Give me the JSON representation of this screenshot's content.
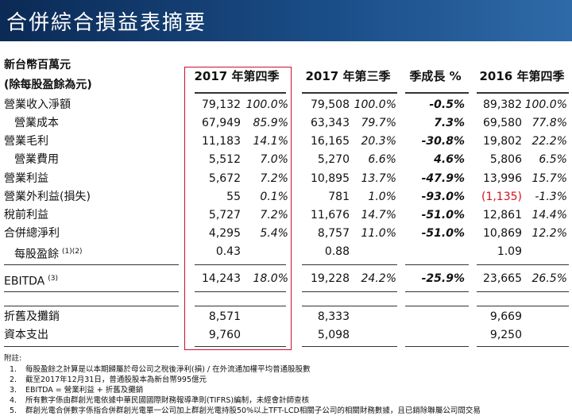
{
  "header": {
    "title": "合併綜合損益表摘要"
  },
  "table": {
    "unit_label": [
      "新台幣百萬元",
      "(除每股盈餘為元)"
    ],
    "columns": [
      "2017 年第四季",
      "2017 年第三季",
      "季成長 %",
      "2016 年第四季"
    ],
    "rows": [
      {
        "label": "營業收入淨額",
        "cells": [
          "79,132",
          "100.0%",
          "79,508",
          "100.0%",
          "-0.5%",
          "89,382",
          "100.0%"
        ]
      },
      {
        "label": "營業成本",
        "indent": true,
        "cells": [
          "67,949",
          "85.9%",
          "63,343",
          "79.7%",
          "7.3%",
          "69,580",
          "77.8%"
        ]
      },
      {
        "label": "營業毛利",
        "cells": [
          "11,183",
          "14.1%",
          "16,165",
          "20.3%",
          "-30.8%",
          "19,802",
          "22.2%"
        ]
      },
      {
        "label": "營業費用",
        "indent": true,
        "cells": [
          "5,512",
          "7.0%",
          "5,270",
          "6.6%",
          "4.6%",
          "5,806",
          "6.5%"
        ]
      },
      {
        "label": "營業利益",
        "cells": [
          "5,672",
          "7.2%",
          "10,895",
          "13.7%",
          "-47.9%",
          "13,996",
          "15.7%"
        ]
      },
      {
        "label": "營業外利益(損失)",
        "cells": [
          "55",
          "0.1%",
          "781",
          "1.0%",
          "-93.0%",
          "(1,135)",
          "-1.3%"
        ]
      },
      {
        "label": "稅前利益",
        "cells": [
          "5,727",
          "7.2%",
          "11,676",
          "14.7%",
          "-51.0%",
          "12,861",
          "14.4%"
        ]
      },
      {
        "label": "合併總淨利",
        "cells": [
          "4,295",
          "5.4%",
          "8,757",
          "11.0%",
          "-51.0%",
          "10,869",
          "12.2%"
        ]
      },
      {
        "label": "每股盈餘",
        "note": "(1)(2)",
        "indent": true,
        "cells": [
          "0.43",
          null,
          "0.88",
          null,
          null,
          "1.09",
          null
        ]
      },
      {
        "label": "EBITDA",
        "note": "(3)",
        "cells": [
          "14,243",
          "18.0%",
          "19,228",
          "24.2%",
          "-25.9%",
          "23,665",
          "26.5%"
        ]
      },
      {
        "label": "折舊及攤銷",
        "cells": [
          "8,571",
          null,
          "8,333",
          null,
          null,
          "9,669",
          null
        ]
      },
      {
        "label": "資本支出",
        "cells": [
          "9,760",
          null,
          "5,098",
          null,
          null,
          "9,250",
          null
        ]
      }
    ]
  },
  "footnotes": {
    "heading": "附註:",
    "items": [
      {
        "number": "1.",
        "text": "每股盈餘之計算是以本期歸屬於母公司之稅後淨利(損) / 在外流通加權平均普通股股數"
      },
      {
        "number": "2.",
        "text": "截至2017年12月31日，普通股股本為新台幣995億元"
      },
      {
        "number": "3.",
        "text": "EBITDA = 營業利益 + 折舊及攤銷"
      },
      {
        "number": "4.",
        "text": "所有數字係由群創光電依據中華民國國際財務報導準則(TIFRS)編制，未經會計師查核"
      },
      {
        "number": "5.",
        "text": "群創光電合併數字係指合併群創光電單一公司加上群創光電持股50%以上TFT-LCD相關子公司的相關財務數據，且已銷除聯屬公司間交易"
      }
    ]
  }
}
